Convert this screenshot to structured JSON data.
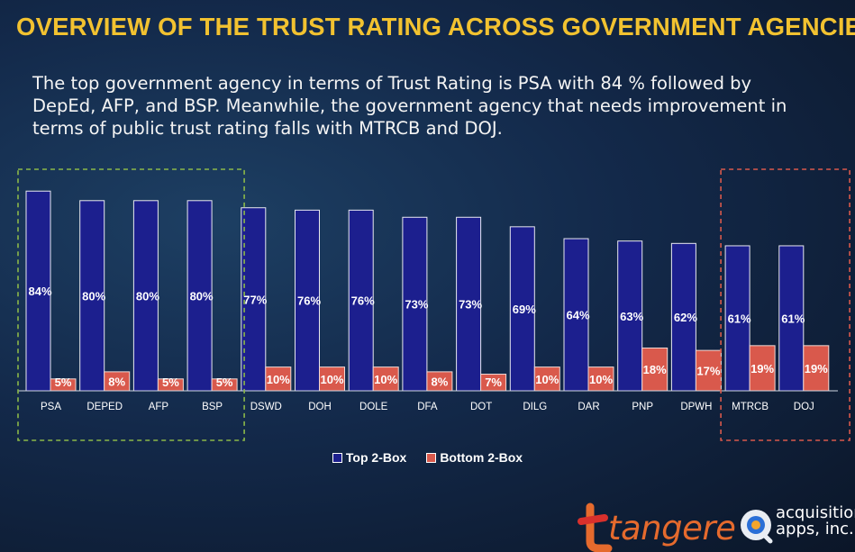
{
  "title": "OVERVIEW OF THE TRUST RATING ACROSS GOVERNMENT AGENCIES",
  "subtitle": "The top government agency in terms of Trust Rating is PSA with 84 % followed by DepEd, AFP, and BSP. Meanwhile, the government agency that needs improvement in terms of public trust rating falls with MTRCB and DOJ.",
  "colors": {
    "title": "#f2c230",
    "top2box": "#1c1f8e",
    "bottom2box": "#d9594c",
    "top_highlight_box": "#8bb849",
    "bottom_highlight_box": "#d9594c"
  },
  "chart_data": {
    "type": "bar",
    "categories": [
      "PSA",
      "DEPED",
      "AFP",
      "BSP",
      "DSWD",
      "DOH",
      "DOLE",
      "DFA",
      "DOT",
      "DILG",
      "DAR",
      "PNP",
      "DPWH",
      "MTRCB",
      "DOJ"
    ],
    "series": [
      {
        "name": "Top 2-Box",
        "values": [
          84,
          80,
          80,
          80,
          77,
          76,
          76,
          73,
          73,
          69,
          64,
          63,
          62,
          61,
          61
        ],
        "labels": [
          "84%",
          "80%",
          "80%",
          "80%",
          "77%",
          "76%",
          "76%",
          "73%",
          "73%",
          "69%",
          "64%",
          "63%",
          "62%",
          "61%",
          "61%"
        ]
      },
      {
        "name": "Bottom 2-Box",
        "values": [
          5,
          8,
          5,
          5,
          10,
          10,
          10,
          8,
          7,
          10,
          10,
          18,
          17,
          19,
          19
        ],
        "labels": [
          "5%",
          "8%",
          "5%",
          "5%",
          "10%",
          "10%",
          "10%",
          "8%",
          "7%",
          "10%",
          "10%",
          "18%",
          "17%",
          "19%",
          "19%"
        ]
      }
    ],
    "ylim": [
      0,
      100
    ],
    "grid": false,
    "legend": "bottom-center",
    "highlights": [
      {
        "categories": [
          "PSA",
          "DEPED",
          "AFP",
          "BSP"
        ],
        "style": "dashed",
        "color": "#8bb849"
      },
      {
        "categories": [
          "MTRCB",
          "DOJ"
        ],
        "style": "dashed",
        "color": "#d9594c"
      }
    ]
  },
  "logos": {
    "tangere": "tangere",
    "acquisition_line1": "acquisition",
    "acquisition_line2": "apps, inc."
  }
}
